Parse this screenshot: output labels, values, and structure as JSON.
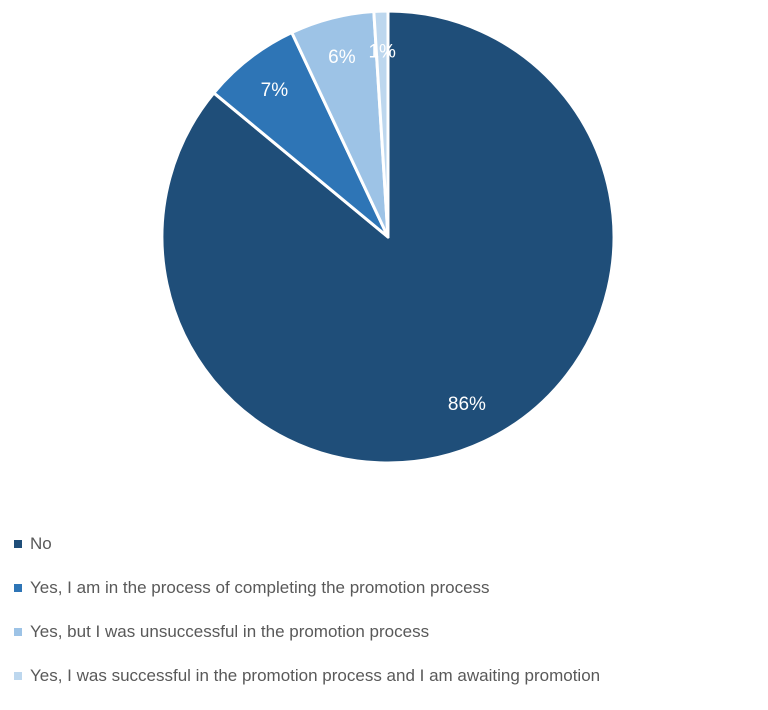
{
  "chart_data": {
    "type": "pie",
    "title": "",
    "start_angle": "12 o'clock, clockwise",
    "legend_position": "bottom",
    "slices": [
      {
        "label": "No",
        "value": 86,
        "display": "86%",
        "color": "#1F4E79"
      },
      {
        "label": "Yes, I am in the process of completing the promotion process",
        "value": 7,
        "display": "7%",
        "color": "#2E75B6"
      },
      {
        "label": "Yes, but I was unsuccessful in the promotion process",
        "value": 6,
        "display": "6%",
        "color": "#9DC3E6"
      },
      {
        "label": "Yes, I was successful in the promotion process and I am awaiting promotion",
        "value": 1,
        "display": "1%",
        "color": "#BDD7EE"
      }
    ]
  }
}
